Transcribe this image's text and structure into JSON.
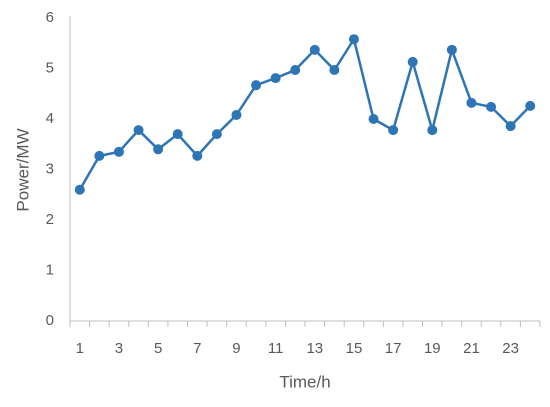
{
  "chart_data": {
    "type": "line",
    "x_label": "Time/h",
    "y_label": "Power/MW",
    "categories": [
      "1",
      null,
      "3",
      null,
      "5",
      null,
      "7",
      null,
      "9",
      null,
      "11",
      null,
      "13",
      null,
      "15",
      null,
      "17",
      null,
      "19",
      null,
      "21",
      null,
      "23",
      null
    ],
    "series": [
      {
        "name": "Power",
        "color": "#2e75b6",
        "values": [
          2.6,
          3.27,
          3.35,
          3.78,
          3.4,
          3.7,
          3.27,
          3.7,
          4.08,
          4.67,
          4.81,
          4.97,
          5.37,
          4.97,
          5.58,
          4.0,
          3.78,
          5.13,
          3.78,
          5.37,
          4.32,
          4.24,
          3.86,
          4.26
        ]
      }
    ],
    "ylim": [
      0,
      6
    ],
    "yticks": [
      0,
      1,
      2,
      3,
      4,
      5,
      6
    ],
    "grid": false
  }
}
